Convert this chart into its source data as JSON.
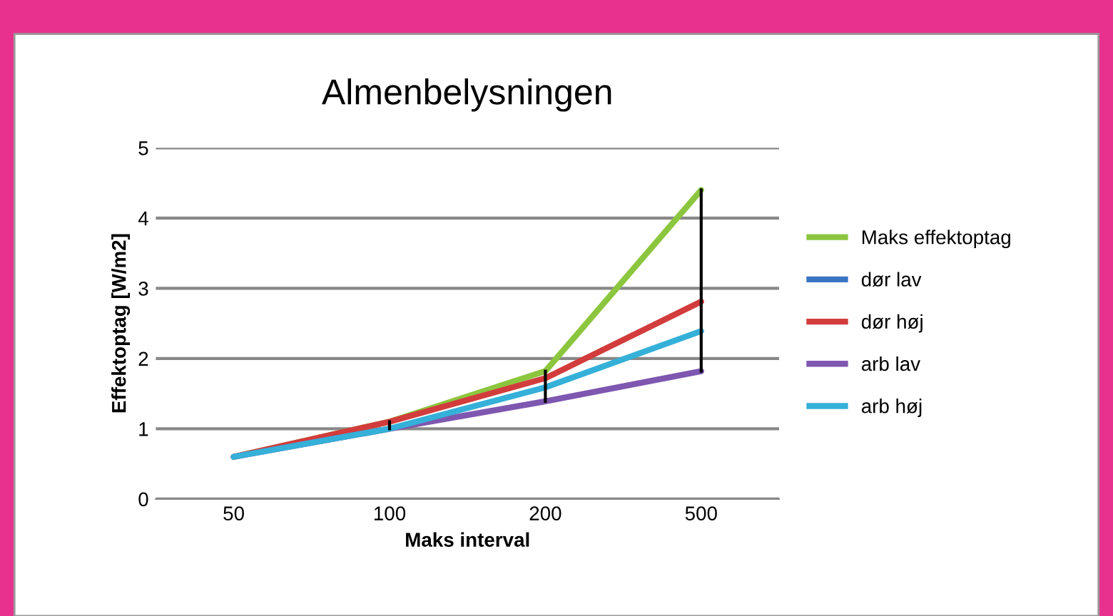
{
  "chart_data": {
    "type": "line",
    "title": "Almenbelysningen",
    "xlabel": "Maks interval",
    "ylabel": "Effektoptag [W/m2]",
    "categories": [
      "50",
      "100",
      "200",
      "500"
    ],
    "series": [
      {
        "name": "Maks effektoptag",
        "color": "#8cc63f",
        "values": [
          0.6,
          1.1,
          1.82,
          4.4
        ]
      },
      {
        "name": "dør lav",
        "color": "#3a75c4",
        "values": [
          null,
          null,
          null,
          null
        ]
      },
      {
        "name": "dør høj",
        "color": "#d23c3c",
        "values": [
          0.6,
          1.1,
          1.72,
          2.81
        ]
      },
      {
        "name": "arb lav",
        "color": "#7e57b0",
        "values": [
          0.6,
          1.0,
          1.39,
          1.82
        ],
        "errors": [
          null,
          [
            1.0,
            1.1
          ],
          [
            1.39,
            1.82
          ],
          [
            1.82,
            4.4
          ]
        ]
      },
      {
        "name": "arb høj",
        "color": "#35b0d8",
        "values": [
          0.6,
          1.0,
          1.59,
          2.39
        ]
      }
    ],
    "ylim": [
      0,
      5
    ],
    "yticks": [
      0,
      1,
      2,
      3,
      4,
      5
    ],
    "grid": "y",
    "legend": "right",
    "marker": "none",
    "line_style": "solid"
  }
}
